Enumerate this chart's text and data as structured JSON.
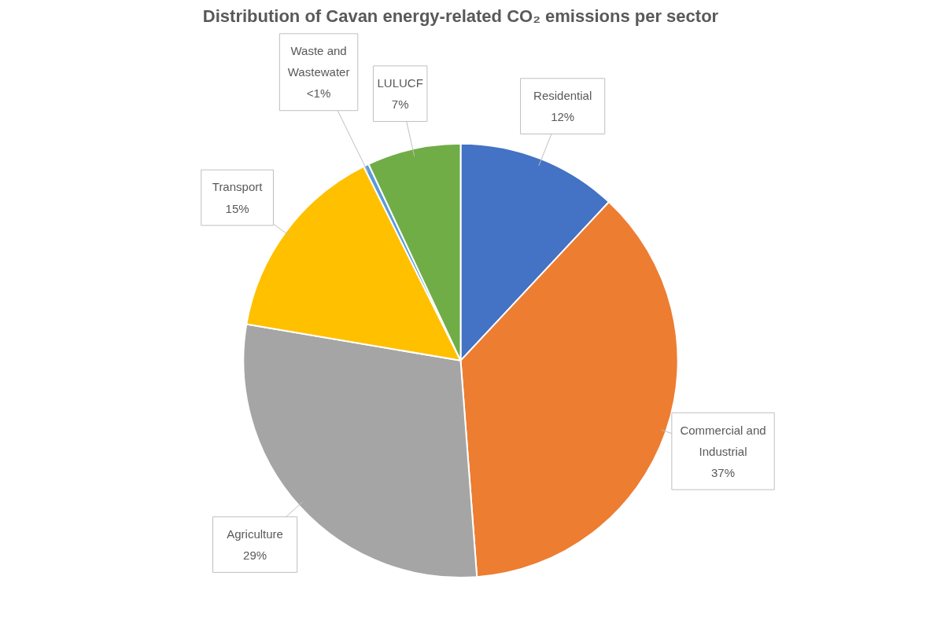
{
  "chart_data": {
    "type": "pie",
    "title": "Distribution of Cavan energy-related CO₂ emissions per sector",
    "categories": [
      "Residential",
      "Commercial and Industrial",
      "Agriculture",
      "Transport",
      "Waste and Wastewater",
      "LULUCF"
    ],
    "values": [
      12,
      37,
      29,
      15,
      0.4,
      7
    ],
    "value_labels": [
      "12%",
      "37%",
      "29%",
      "15%",
      "<1%",
      "7%"
    ],
    "colors": [
      "#4472c4",
      "#ed7d31",
      "#a5a5a5",
      "#ffc000",
      "#5b9bd5",
      "#70ad47"
    ]
  }
}
